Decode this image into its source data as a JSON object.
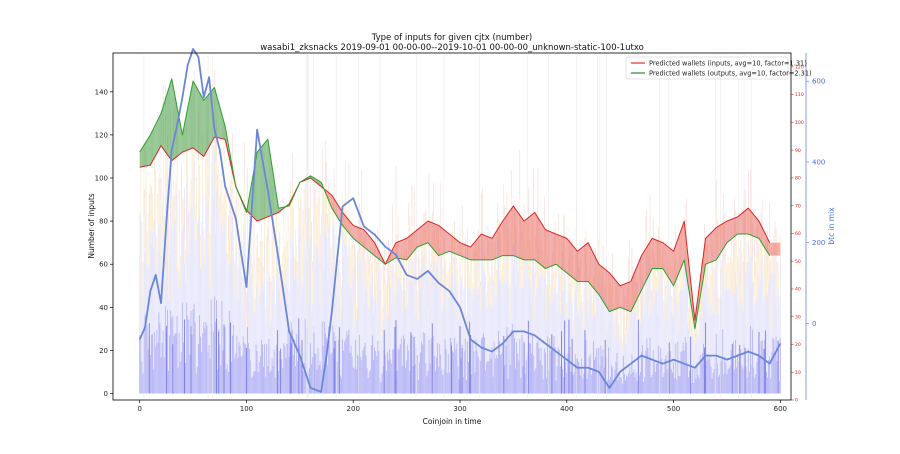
{
  "chart_data": {
    "type": "line",
    "title": "Type of inputs for given cjtx (number)",
    "subtitle": "wasabi1_zksnacks 2019-09-01 00-00-00--2019-10-01 00-00-00_unknown-static-100-1utxo",
    "xlabel": "Coinjoin in time",
    "ylabel": "Number of inputs",
    "y2label": "btc in mix",
    "xlim": [
      -25,
      610
    ],
    "ylim": [
      -3,
      158
    ],
    "y2lim": [
      0,
      125
    ],
    "y3lim": [
      -190,
      670
    ],
    "xticks": [
      0,
      100,
      200,
      300,
      400,
      500,
      600
    ],
    "yticks": [
      0,
      20,
      40,
      60,
      80,
      100,
      120,
      140
    ],
    "y2ticks": [
      0,
      10,
      20,
      30,
      40,
      50,
      60,
      70,
      80,
      90,
      100,
      110,
      120
    ],
    "y3ticks": [
      0,
      200,
      400,
      600
    ],
    "grid": false,
    "legend_position": "top-right",
    "legend": [
      {
        "label": "Predicted wallets (inputs, avg=10, factor=1.31)",
        "color": "#e8665f"
      },
      {
        "label": "Predicted wallets (outputs, avg=10, factor=2.31)",
        "color": "#5aaa5a"
      }
    ],
    "series": [
      {
        "name": "Predicted wallets (inputs, avg=10, factor=1.31)",
        "color": "#d62728",
        "x": [
          0,
          10,
          20,
          30,
          40,
          50,
          60,
          70,
          80,
          90,
          100,
          110,
          120,
          130,
          140,
          150,
          160,
          170,
          180,
          190,
          200,
          210,
          220,
          230,
          240,
          250,
          260,
          270,
          280,
          290,
          300,
          310,
          320,
          330,
          340,
          350,
          360,
          370,
          380,
          390,
          400,
          410,
          420,
          430,
          440,
          450,
          460,
          470,
          480,
          490,
          500,
          510,
          520,
          530,
          540,
          550,
          560,
          570,
          580,
          590
        ],
        "values": [
          105,
          106,
          115,
          108,
          112,
          114,
          110,
          119,
          118,
          96,
          85,
          80,
          82,
          84,
          88,
          98,
          100,
          96,
          92,
          84,
          78,
          76,
          70,
          60,
          70,
          72,
          76,
          80,
          78,
          74,
          70,
          68,
          74,
          72,
          80,
          87,
          80,
          84,
          76,
          74,
          72,
          66,
          70,
          60,
          56,
          50,
          52,
          64,
          72,
          70,
          66,
          80,
          34,
          72,
          77,
          80,
          82,
          86,
          80,
          70
        ]
      },
      {
        "name": "Predicted wallets (outputs, avg=10, factor=2.31)",
        "color": "#2ca02c",
        "x": [
          0,
          10,
          20,
          30,
          40,
          50,
          60,
          70,
          80,
          90,
          100,
          110,
          120,
          130,
          140,
          150,
          160,
          170,
          180,
          190,
          200,
          210,
          220,
          230,
          240,
          250,
          260,
          270,
          280,
          290,
          300,
          310,
          320,
          330,
          340,
          350,
          360,
          370,
          380,
          390,
          400,
          410,
          420,
          430,
          440,
          450,
          460,
          470,
          480,
          490,
          500,
          510,
          520,
          530,
          540,
          550,
          560,
          570,
          580,
          590
        ],
        "values": [
          112,
          120,
          130,
          146,
          120,
          145,
          136,
          142,
          124,
          96,
          84,
          112,
          118,
          86,
          87,
          98,
          101,
          98,
          86,
          78,
          72,
          68,
          64,
          60,
          63,
          62,
          68,
          70,
          64,
          66,
          64,
          62,
          62,
          62,
          64,
          64,
          62,
          62,
          58,
          60,
          56,
          52,
          52,
          46,
          38,
          40,
          38,
          48,
          58,
          58,
          50,
          62,
          30,
          60,
          62,
          70,
          74,
          74,
          72,
          64
        ]
      },
      {
        "name": "btc in mix",
        "axis": "y3",
        "color": "#6b86d9",
        "x": [
          0,
          5,
          10,
          15,
          20,
          25,
          30,
          35,
          40,
          45,
          50,
          55,
          60,
          65,
          70,
          75,
          80,
          90,
          100,
          110,
          120,
          130,
          140,
          150,
          160,
          170,
          175,
          180,
          190,
          200,
          210,
          220,
          230,
          240,
          250,
          260,
          270,
          280,
          290,
          300,
          310,
          320,
          330,
          340,
          350,
          360,
          370,
          380,
          390,
          400,
          410,
          420,
          430,
          440,
          450,
          460,
          470,
          480,
          490,
          500,
          510,
          520,
          530,
          540,
          550,
          560,
          570,
          580,
          590,
          600
        ],
        "values": [
          -40,
          -10,
          80,
          120,
          50,
          250,
          430,
          490,
          560,
          640,
          680,
          660,
          560,
          610,
          480,
          430,
          340,
          260,
          90,
          480,
          330,
          160,
          -20,
          -80,
          -160,
          -170,
          -80,
          30,
          290,
          310,
          240,
          220,
          190,
          170,
          120,
          110,
          130,
          100,
          80,
          40,
          -40,
          -60,
          -70,
          -50,
          -20,
          -20,
          -30,
          -50,
          -70,
          -90,
          -110,
          -110,
          -120,
          -160,
          -120,
          -100,
          -80,
          -90,
          -100,
          -90,
          -100,
          -110,
          -80,
          -80,
          -90,
          -80,
          -70,
          -80,
          -100,
          -50
        ]
      }
    ],
    "background_bars": {
      "description_colors": [
        "#b7b7f6",
        "#e7e7fb",
        "#fbe9c4",
        "#f6c8c8"
      ],
      "x_range": [
        0,
        600
      ]
    }
  },
  "colors": {
    "inputs": "#d62728",
    "outputs": "#2ca02c",
    "btc": "#6b86d9",
    "fill_red": "#f27f7f",
    "fill_green": "#4ea04e"
  }
}
